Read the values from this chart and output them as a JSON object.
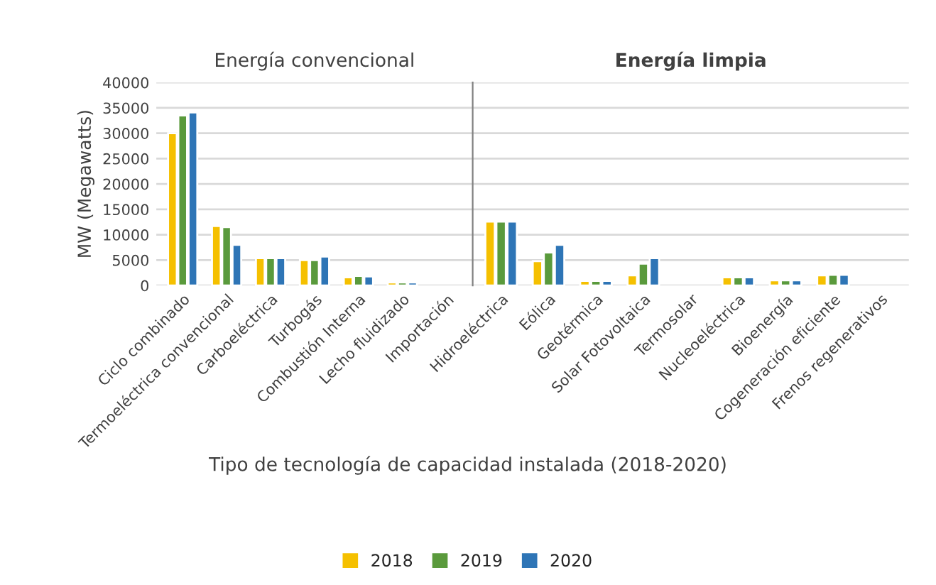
{
  "chart_data": [
    {
      "type": "bar",
      "title": "Energía convencional",
      "ylabel": "MW (Megawatts)",
      "xlabel": "Tipo de tecnología de capacidad instalada (2018-2020)",
      "categories": [
        "Ciclo combinado",
        "Termoeléctrica convencional",
        "Carboeléctrica",
        "Turbogás",
        "Combustión Interna",
        "Lecho fluidizado",
        "Importación"
      ],
      "series": [
        {
          "name": "2018",
          "color": "#f5c000",
          "values": [
            30000,
            11700,
            5400,
            5000,
            1600,
            600,
            null
          ]
        },
        {
          "name": "2019",
          "color": "#5a9a3c",
          "values": [
            33500,
            11500,
            5400,
            5000,
            1900,
            600,
            null
          ]
        },
        {
          "name": "2020",
          "color": "#2e75b6",
          "values": [
            34100,
            8000,
            5400,
            5700,
            1800,
            600,
            null
          ]
        }
      ],
      "ylim": [
        0,
        40000
      ],
      "yticks": [
        0,
        5000,
        10000,
        15000,
        20000,
        25000,
        30000,
        35000,
        40000
      ],
      "grid": "y",
      "legend": "bottom"
    },
    {
      "type": "bar",
      "title": "Energía limpia",
      "categories": [
        "Hidroeléctrica",
        "Eólica",
        "Geotérmica",
        "Solar Fotovoltaica",
        "Termosolar",
        "Nucleoeléctrica",
        "Bioenergía",
        "Cogeneración eficiente",
        "Frenos regenerativos"
      ],
      "series": [
        {
          "color": "#f5c000",
          "values": [
            12600,
            4800,
            900,
            2000,
            null,
            1600,
            1000,
            2000,
            null
          ]
        },
        {
          "color": "#5a9a3c",
          "values": [
            12600,
            6500,
            900,
            4300,
            null,
            1600,
            1000,
            2100,
            null
          ]
        },
        {
          "color": "#2e75b6",
          "values": [
            12600,
            8000,
            900,
            5400,
            null,
            1600,
            1000,
            2100,
            null
          ]
        }
      ],
      "ylim": [
        0,
        40000
      ],
      "yticks": [
        0,
        5000,
        10000,
        15000,
        20000,
        25000,
        30000,
        35000,
        40000
      ],
      "grid": "y",
      "tick_labels": "x"
    }
  ]
}
